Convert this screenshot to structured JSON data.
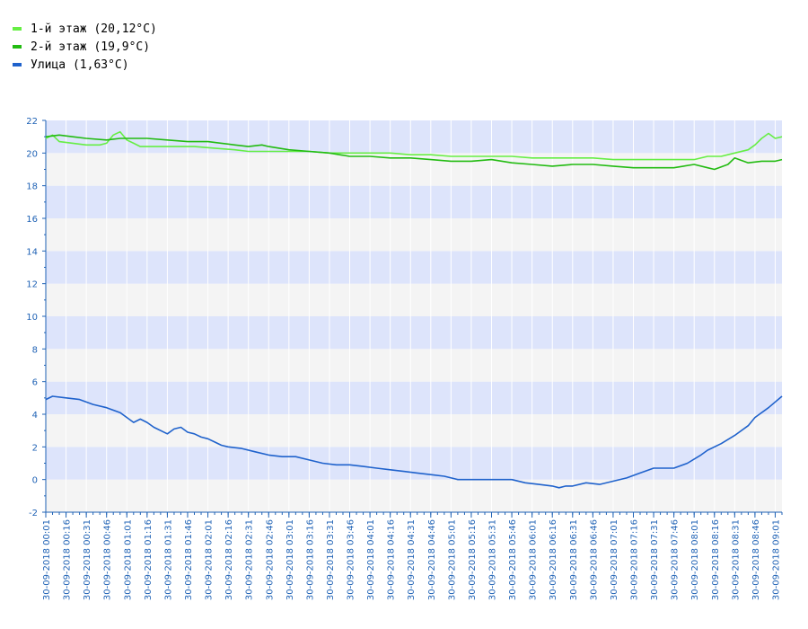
{
  "legend": [
    {
      "label": "1-й этаж (20,12°C)",
      "color": "#66ee44"
    },
    {
      "label": "2-й этаж (19,9°C)",
      "color": "#22bb11"
    },
    {
      "label": "Улица (1,63°C)",
      "color": "#1f62cc"
    }
  ],
  "colors": {
    "band_blue": "#dde4fb",
    "band_grey": "#f4f4f4",
    "axis": "#1f62b5",
    "grid": "#ffffff"
  },
  "chart_data": {
    "type": "line",
    "title": "",
    "xlabel": "",
    "ylabel": "",
    "ylim": [
      -2,
      22
    ],
    "yticks": [
      "-2",
      "0",
      "2",
      "4",
      "6",
      "8",
      "10",
      "12",
      "14",
      "16",
      "18",
      "20",
      "22"
    ],
    "xlim": [
      "00:01",
      "09:06"
    ],
    "xtick_labels": [
      "30-09-2018  00:01",
      "30-09-2018  00:16",
      "30-09-2018  00:31",
      "30-09-2018  00:46",
      "30-09-2018  01:01",
      "30-09-2018  01:16",
      "30-09-2018  01:31",
      "30-09-2018  01:46",
      "30-09-2018  02:01",
      "30-09-2018  02:16",
      "30-09-2018  02:31",
      "30-09-2018  02:46",
      "30-09-2018  03:01",
      "30-09-2018  03:16",
      "30-09-2018  03:31",
      "30-09-2018  03:46",
      "30-09-2018  04:01",
      "30-09-2018  04:16",
      "30-09-2018  04:31",
      "30-09-2018  04:46",
      "30-09-2018  05:01",
      "30-09-2018  05:16",
      "30-09-2018  05:31",
      "30-09-2018  05:46",
      "30-09-2018  06:01",
      "30-09-2018  06:16",
      "30-09-2018  06:31",
      "30-09-2018  06:46",
      "30-09-2018  07:01",
      "30-09-2018  07:16",
      "30-09-2018  07:31",
      "30-09-2018  07:46",
      "30-09-2018  08:01",
      "30-09-2018  08:16",
      "30-09-2018  08:31",
      "30-09-2018  08:46",
      "30-09-2018  09:01"
    ],
    "grid": true,
    "legend_position": "top-left",
    "series": [
      {
        "name": "1-й этаж (20,12°C)",
        "color": "#66ee44",
        "x": [
          "00:01",
          "00:06",
          "00:11",
          "00:21",
          "00:31",
          "00:41",
          "00:46",
          "00:51",
          "00:56",
          "01:01",
          "01:06",
          "01:11",
          "01:21",
          "01:36",
          "01:51",
          "02:06",
          "02:21",
          "02:31",
          "02:46",
          "03:01",
          "03:16",
          "03:31",
          "03:46",
          "04:01",
          "04:16",
          "04:31",
          "04:46",
          "05:01",
          "05:16",
          "05:31",
          "05:46",
          "06:01",
          "06:16",
          "06:31",
          "06:46",
          "07:01",
          "07:16",
          "07:31",
          "07:46",
          "08:01",
          "08:11",
          "08:21",
          "08:31",
          "08:41",
          "08:46",
          "08:51",
          "08:56",
          "09:01",
          "09:06"
        ],
        "values": [
          20.9,
          21.1,
          20.7,
          20.6,
          20.5,
          20.5,
          20.6,
          21.1,
          21.3,
          20.8,
          20.6,
          20.4,
          20.4,
          20.4,
          20.4,
          20.3,
          20.2,
          20.1,
          20.1,
          20.1,
          20.1,
          20.0,
          20.0,
          20.0,
          20.0,
          19.9,
          19.9,
          19.8,
          19.8,
          19.8,
          19.8,
          19.7,
          19.7,
          19.7,
          19.7,
          19.6,
          19.6,
          19.6,
          19.6,
          19.6,
          19.8,
          19.8,
          20.0,
          20.2,
          20.5,
          20.9,
          21.2,
          20.9,
          21.0
        ]
      },
      {
        "name": "2-й этаж (19,9°C)",
        "color": "#22bb11",
        "x": [
          "00:01",
          "00:11",
          "00:21",
          "00:31",
          "00:46",
          "00:56",
          "01:06",
          "01:16",
          "01:31",
          "01:46",
          "02:01",
          "02:11",
          "02:21",
          "02:31",
          "02:41",
          "02:46",
          "03:01",
          "03:16",
          "03:31",
          "03:46",
          "04:01",
          "04:16",
          "04:31",
          "04:46",
          "05:01",
          "05:16",
          "05:31",
          "05:46",
          "06:01",
          "06:16",
          "06:31",
          "06:46",
          "07:01",
          "07:16",
          "07:31",
          "07:46",
          "08:01",
          "08:11",
          "08:16",
          "08:26",
          "08:31",
          "08:41",
          "08:51",
          "09:01",
          "09:06"
        ],
        "values": [
          21.0,
          21.1,
          21.0,
          20.9,
          20.8,
          20.9,
          20.9,
          20.9,
          20.8,
          20.7,
          20.7,
          20.6,
          20.5,
          20.4,
          20.5,
          20.4,
          20.2,
          20.1,
          20.0,
          19.8,
          19.8,
          19.7,
          19.7,
          19.6,
          19.5,
          19.5,
          19.6,
          19.4,
          19.3,
          19.2,
          19.3,
          19.3,
          19.2,
          19.1,
          19.1,
          19.1,
          19.3,
          19.1,
          19.0,
          19.3,
          19.7,
          19.4,
          19.5,
          19.5,
          19.6
        ]
      },
      {
        "name": "Улица (1,63°C)",
        "color": "#1f62cc",
        "x": [
          "00:01",
          "00:06",
          "00:16",
          "00:26",
          "00:36",
          "00:46",
          "00:56",
          "01:01",
          "01:06",
          "01:11",
          "01:16",
          "01:21",
          "01:31",
          "01:36",
          "01:41",
          "01:46",
          "01:51",
          "01:56",
          "02:01",
          "02:06",
          "02:11",
          "02:16",
          "02:26",
          "02:36",
          "02:46",
          "02:56",
          "03:06",
          "03:16",
          "03:26",
          "03:36",
          "03:46",
          "03:56",
          "04:06",
          "04:16",
          "04:26",
          "04:36",
          "04:46",
          "04:56",
          "05:06",
          "05:16",
          "05:26",
          "05:36",
          "05:46",
          "05:56",
          "06:06",
          "06:16",
          "06:21",
          "06:26",
          "06:31",
          "06:41",
          "06:51",
          "07:01",
          "07:11",
          "07:21",
          "07:31",
          "07:36",
          "07:46",
          "07:56",
          "08:06",
          "08:11",
          "08:21",
          "08:31",
          "08:41",
          "08:46",
          "08:56",
          "09:06"
        ],
        "values": [
          4.9,
          5.1,
          5.0,
          4.9,
          4.6,
          4.4,
          4.1,
          3.8,
          3.5,
          3.7,
          3.5,
          3.2,
          2.8,
          3.1,
          3.2,
          2.9,
          2.8,
          2.6,
          2.5,
          2.3,
          2.1,
          2.0,
          1.9,
          1.7,
          1.5,
          1.4,
          1.4,
          1.2,
          1.0,
          0.9,
          0.9,
          0.8,
          0.7,
          0.6,
          0.5,
          0.4,
          0.3,
          0.2,
          0.0,
          0.0,
          0.0,
          0.0,
          0.0,
          -0.2,
          -0.3,
          -0.4,
          -0.5,
          -0.4,
          -0.4,
          -0.2,
          -0.3,
          -0.1,
          0.1,
          0.4,
          0.7,
          0.7,
          0.7,
          1.0,
          1.5,
          1.8,
          2.2,
          2.7,
          3.3,
          3.8,
          4.4,
          5.1
        ]
      }
    ]
  }
}
